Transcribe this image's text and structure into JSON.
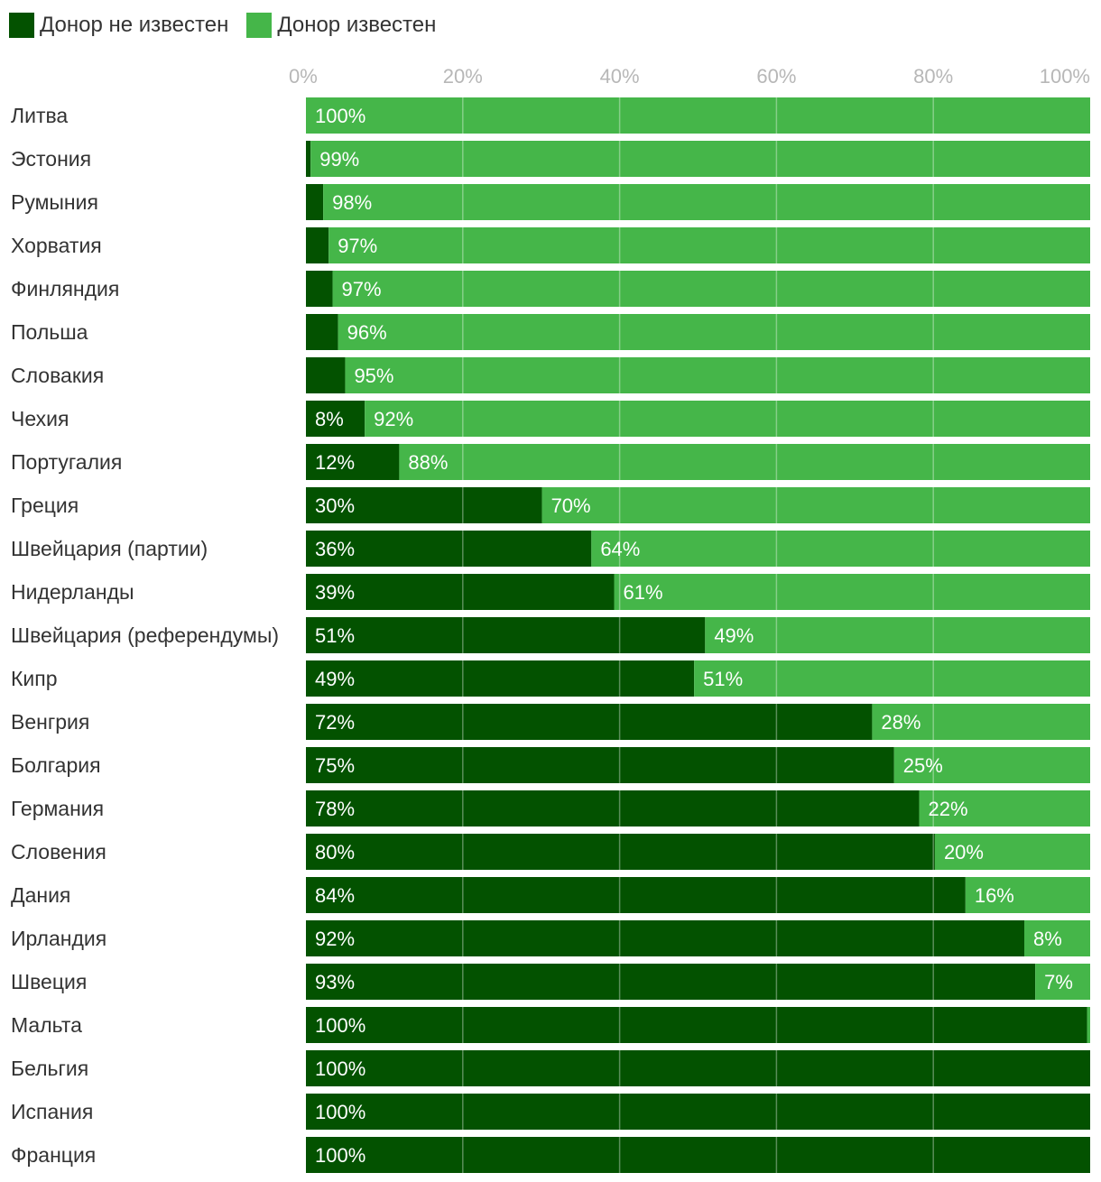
{
  "legend": {
    "unknown_label": "Донор не известен",
    "known_label": "Донор известен",
    "unknown_color": "#035200",
    "known_color": "#45b649"
  },
  "chart_data": {
    "type": "bar",
    "orientation": "horizontal",
    "stacked": "100%",
    "title": "",
    "xlabel": "",
    "ylabel": "",
    "xlim": [
      0,
      100
    ],
    "x_ticks": [
      "0%",
      "20%",
      "40%",
      "60%",
      "80%",
      "100%"
    ],
    "grid": true,
    "legend_position": "top-left",
    "categories": [
      "Литва",
      "Эстония",
      "Румыния",
      "Хорватия",
      "Финляндия",
      "Польша",
      "Словакия",
      "Чехия",
      "Португалия",
      "Греция",
      "Швейцария (партии)",
      "Нидерланды",
      "Швейцария (референдумы)",
      "Кипр",
      "Венгрия",
      "Болгария",
      "Германия",
      "Словения",
      "Дания",
      "Ирландия",
      "Швеция",
      "Мальта",
      "Бельгия",
      "Испания",
      "Франция"
    ],
    "series": [
      {
        "name": "Донор не известен",
        "values": [
          0,
          0.6,
          2.2,
          2.9,
          3.4,
          4.1,
          5.0,
          7.5,
          11.9,
          30.1,
          36.4,
          39.3,
          50.9,
          49.5,
          72.2,
          75.0,
          78.2,
          80.2,
          84.1,
          91.6,
          93.0,
          99.6,
          100,
          100,
          100
        ],
        "labels": [
          "",
          "",
          "",
          "",
          "",
          "",
          "",
          "8%",
          "12%",
          "30%",
          "36%",
          "39%",
          "51%",
          "49%",
          "72%",
          "75%",
          "78%",
          "80%",
          "84%",
          "92%",
          "93%",
          "100%",
          "100%",
          "100%",
          "100%"
        ]
      },
      {
        "name": "Донор известен",
        "values": [
          100,
          99.4,
          97.8,
          97.1,
          96.6,
          95.9,
          95.0,
          92.5,
          88.1,
          69.9,
          63.6,
          60.7,
          49.1,
          50.5,
          27.8,
          25.0,
          21.8,
          19.8,
          15.9,
          8.4,
          7.0,
          0.4,
          0,
          0,
          0
        ],
        "labels": [
          "100%",
          "99%",
          "98%",
          "97%",
          "97%",
          "96%",
          "95%",
          "92%",
          "88%",
          "70%",
          "64%",
          "61%",
          "49%",
          "51%",
          "28%",
          "25%",
          "22%",
          "20%",
          "16%",
          "8%",
          "7%",
          "",
          "",
          "",
          ""
        ]
      }
    ]
  }
}
